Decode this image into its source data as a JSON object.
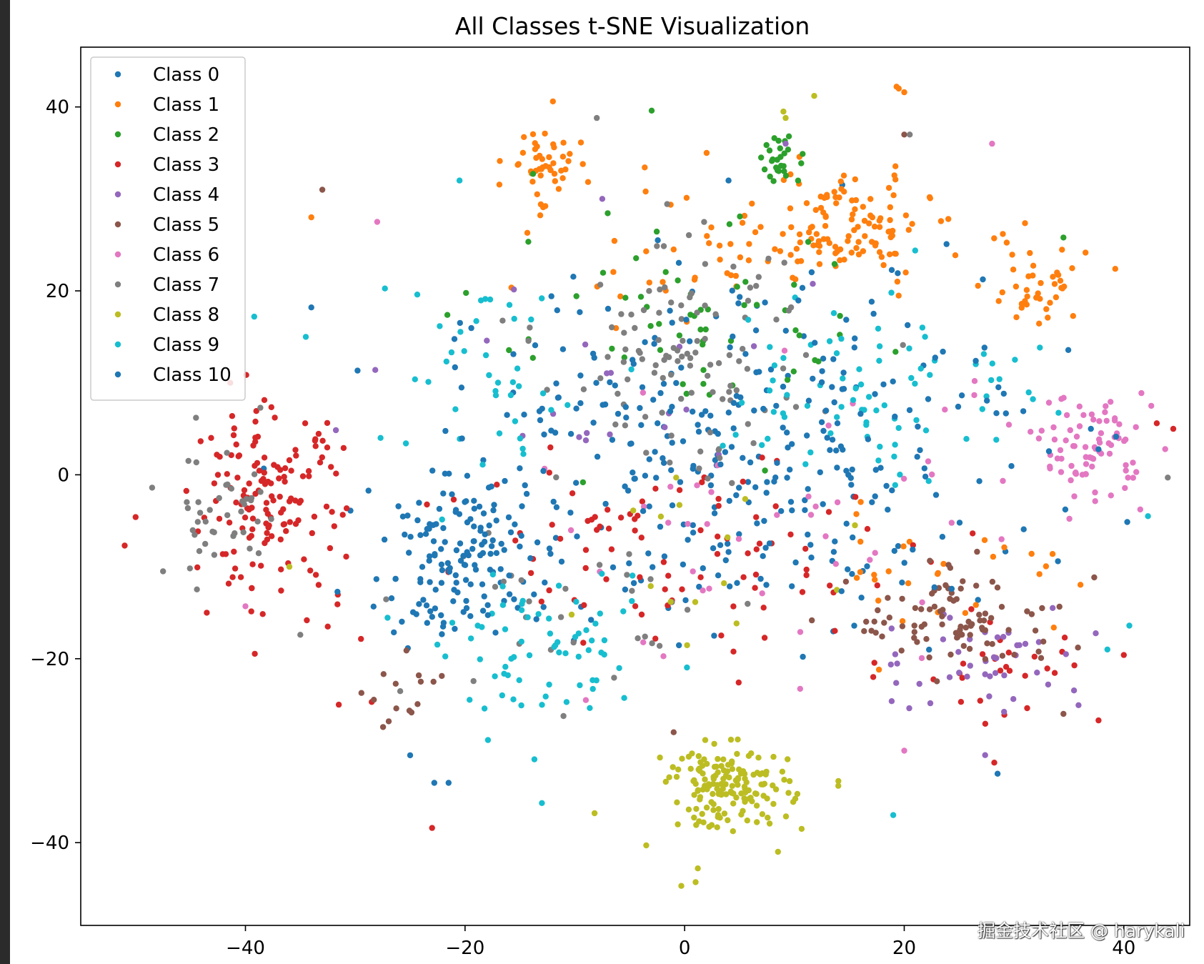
{
  "chart_data": {
    "type": "scatter",
    "title": "All Classes t-SNE Visualization",
    "xlabel": "",
    "ylabel": "",
    "xlim": [
      -55,
      46
    ],
    "ylim": [
      -49,
      46.5
    ],
    "x_ticks": [
      -40,
      -20,
      0,
      20,
      40
    ],
    "y_ticks": [
      -40,
      -20,
      0,
      20,
      40
    ],
    "x_tick_labels": [
      "−40",
      "−20",
      "0",
      "20",
      "40"
    ],
    "y_tick_labels": [
      "−40",
      "−20",
      "0",
      "20",
      "40"
    ],
    "grid": false,
    "legend_position": "upper-left",
    "series": [
      {
        "name": "Class 0",
        "color": "#1f77b4",
        "clusters": [
          {
            "cx": 2,
            "cy": 2,
            "sx": 20,
            "sy": 16,
            "n": 220
          },
          {
            "cx": -22,
            "cy": -10,
            "sx": 5,
            "sy": 6,
            "n": 60
          }
        ],
        "points": [
          [
            -25.5,
            -6.5
          ],
          [
            -23.5,
            -14.2
          ],
          [
            -22,
            -16.5
          ],
          [
            -21,
            -12.5
          ],
          [
            4,
            32
          ],
          [
            -22.8,
            -33.5
          ],
          [
            -2,
            1.8
          ]
        ]
      },
      {
        "name": "Class 1",
        "color": "#ff7f0e",
        "clusters": [
          {
            "cx": 15,
            "cy": 27,
            "sx": 6,
            "sy": 4.5,
            "n": 90
          },
          {
            "cx": -13,
            "cy": 34,
            "sx": 2.5,
            "sy": 3,
            "n": 45
          },
          {
            "cx": 32,
            "cy": 20,
            "sx": 4,
            "sy": 4,
            "n": 40
          },
          {
            "cx": 5,
            "cy": 25,
            "sx": 15,
            "sy": 6,
            "n": 70
          },
          {
            "cx": 25,
            "cy": -10,
            "sx": 10,
            "sy": 6,
            "n": 30
          }
        ],
        "points": [
          [
            -34,
            28
          ],
          [
            -12,
            40.6
          ],
          [
            19.3,
            42.2
          ],
          [
            20,
            41.6
          ],
          [
            19.5,
            42
          ],
          [
            2,
            35
          ]
        ]
      },
      {
        "name": "Class 2",
        "color": "#2ca02c",
        "clusters": [
          {
            "cx": 9,
            "cy": 34,
            "sx": 1.8,
            "sy": 2,
            "n": 25
          },
          {
            "cx": 0,
            "cy": 15,
            "sx": 15,
            "sy": 10,
            "n": 60
          }
        ],
        "points": [
          [
            -3,
            39.6
          ],
          [
            34.5,
            25.8
          ],
          [
            8.7,
            35.5
          ],
          [
            9.5,
            36.8
          ]
        ]
      },
      {
        "name": "Class 3",
        "color": "#d62728",
        "clusters": [
          {
            "cx": -38,
            "cy": -3,
            "sx": 5.5,
            "sy": 8,
            "n": 150
          },
          {
            "cx": 0,
            "cy": -8,
            "sx": 20,
            "sy": 9,
            "n": 90
          },
          {
            "cx": 28,
            "cy": -20,
            "sx": 8,
            "sy": 6,
            "n": 30
          }
        ],
        "points": [
          [
            -51,
            -7.7
          ],
          [
            -50,
            -4.6
          ],
          [
            -31.5,
            -25
          ],
          [
            -28.5,
            -24.7
          ],
          [
            -23,
            -38.4
          ],
          [
            -32.5,
            -16.5
          ],
          [
            43,
            5.6
          ],
          [
            44.5,
            5
          ],
          [
            40,
            -19.6
          ],
          [
            28.2,
            -31.3
          ]
        ]
      },
      {
        "name": "Class 4",
        "color": "#9467bd",
        "clusters": [
          {
            "cx": 27,
            "cy": -20,
            "sx": 8,
            "sy": 5,
            "n": 45
          },
          {
            "cx": -5,
            "cy": 10,
            "sx": 20,
            "sy": 10,
            "n": 20
          }
        ],
        "points": [
          [
            9.2,
            36
          ],
          [
            -7.5,
            30
          ]
        ]
      },
      {
        "name": "Class 5",
        "color": "#8c564b",
        "clusters": [
          {
            "cx": 25,
            "cy": -16,
            "sx": 8,
            "sy": 4.5,
            "n": 90
          },
          {
            "cx": -25,
            "cy": -24,
            "sx": 3,
            "sy": 3,
            "n": 15
          }
        ],
        "points": [
          [
            -33,
            31
          ],
          [
            20,
            37
          ],
          [
            -1,
            -28
          ],
          [
            34.5,
            -26
          ]
        ]
      },
      {
        "name": "Class 6",
        "color": "#e377c2",
        "clusters": [
          {
            "cx": 37,
            "cy": 3,
            "sx": 4,
            "sy": 4.5,
            "n": 80
          },
          {
            "cx": 10,
            "cy": -5,
            "sx": 20,
            "sy": 12,
            "n": 45
          }
        ],
        "points": [
          [
            -28,
            27.5
          ],
          [
            -40,
            -14.3
          ],
          [
            28,
            36
          ],
          [
            -9,
            -24.5
          ],
          [
            42.5,
            7.5
          ],
          [
            20,
            -30
          ]
        ]
      },
      {
        "name": "Class 7",
        "color": "#7f7f7f",
        "clusters": [
          {
            "cx": 0,
            "cy": 12,
            "sx": 9,
            "sy": 10,
            "n": 110
          },
          {
            "cx": -42,
            "cy": -5,
            "sx": 4.5,
            "sy": 6,
            "n": 40
          },
          {
            "cx": -10,
            "cy": -15,
            "sx": 12,
            "sy": 8,
            "n": 30
          }
        ],
        "points": [
          [
            -8,
            38.8
          ],
          [
            20.5,
            37
          ],
          [
            -47.5,
            -10.5
          ],
          [
            -48.5,
            -1.4
          ],
          [
            -44.5,
            6.2
          ],
          [
            -35,
            -17.4
          ],
          [
            44,
            -0.3
          ]
        ]
      },
      {
        "name": "Class 8",
        "color": "#bcbd22",
        "clusters": [
          {
            "cx": 4,
            "cy": -34,
            "sx": 4.5,
            "sy": 3.5,
            "n": 160
          },
          {
            "cx": 0,
            "cy": -10,
            "sx": 15,
            "sy": 10,
            "n": 15
          }
        ],
        "points": [
          [
            11.8,
            41.2
          ],
          [
            -0.3,
            -44.7
          ],
          [
            1,
            -44.3
          ],
          [
            1.2,
            -42.8
          ],
          [
            -8.2,
            -36.8
          ],
          [
            -3.5,
            -40.3
          ],
          [
            8.5,
            -41
          ],
          [
            9,
            39.5
          ],
          [
            9.2,
            38.8
          ],
          [
            -36,
            -10
          ],
          [
            14,
            -33.3
          ]
        ]
      },
      {
        "name": "Class 9",
        "color": "#17becf",
        "clusters": [
          {
            "cx": 18,
            "cy": 10,
            "sx": 12,
            "sy": 9,
            "n": 80
          },
          {
            "cx": -12,
            "cy": -20,
            "sx": 8,
            "sy": 6,
            "n": 70
          },
          {
            "cx": -18,
            "cy": 10,
            "sx": 8,
            "sy": 10,
            "n": 40
          }
        ],
        "points": [
          [
            -39.2,
            17.2
          ],
          [
            -34.5,
            15
          ],
          [
            19,
            -37
          ],
          [
            40.5,
            -16.4
          ],
          [
            42.2,
            -4.5
          ],
          [
            38.5,
            -19
          ],
          [
            -13,
            -35.7
          ],
          [
            -20.5,
            32
          ]
        ]
      },
      {
        "name": "Class 10",
        "color": "#1f77b4",
        "clusters": [
          {
            "cx": -20,
            "cy": -8,
            "sx": 6,
            "sy": 8,
            "n": 80
          },
          {
            "cx": 10,
            "cy": 5,
            "sx": 18,
            "sy": 14,
            "n": 130
          }
        ],
        "points": [
          [
            -34,
            18.2
          ],
          [
            -25,
            -30.5
          ],
          [
            -21.5,
            -33.5
          ],
          [
            28.5,
            -32.5
          ],
          [
            34,
            -9.4
          ],
          [
            37,
            5
          ]
        ]
      }
    ]
  },
  "watermark": "掘金技术社区 @ harykali"
}
